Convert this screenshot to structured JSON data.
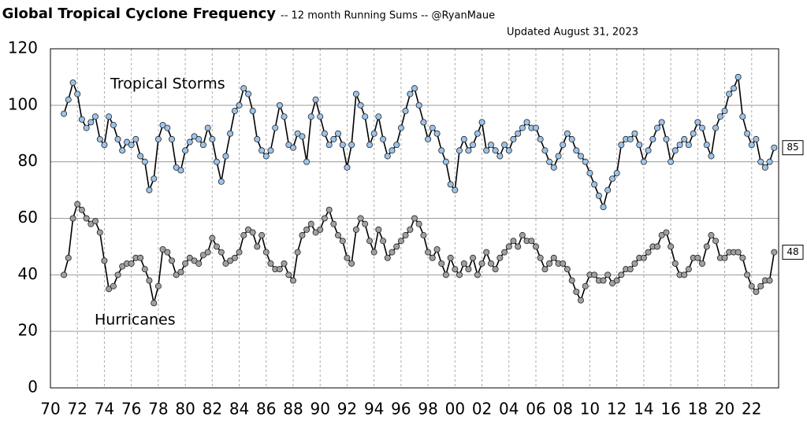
{
  "chart_data": {
    "type": "line",
    "title": "Global Tropical Cyclone Frequency",
    "subtitle": "-- 12 month Running Sums -- @RyanMaue",
    "updated": "Updated August 31, 2023",
    "xlim": [
      1970,
      2024
    ],
    "xticks": [
      {
        "value": 1970,
        "label": "70"
      },
      {
        "value": 1972,
        "label": "72"
      },
      {
        "value": 1974,
        "label": "74"
      },
      {
        "value": 1976,
        "label": "76"
      },
      {
        "value": 1978,
        "label": "78"
      },
      {
        "value": 1980,
        "label": "80"
      },
      {
        "value": 1982,
        "label": "82"
      },
      {
        "value": 1984,
        "label": "84"
      },
      {
        "value": 1986,
        "label": "86"
      },
      {
        "value": 1988,
        "label": "88"
      },
      {
        "value": 1990,
        "label": "90"
      },
      {
        "value": 1992,
        "label": "92"
      },
      {
        "value": 1994,
        "label": "94"
      },
      {
        "value": 1996,
        "label": "96"
      },
      {
        "value": 1998,
        "label": "98"
      },
      {
        "value": 2000,
        "label": "00"
      },
      {
        "value": 2002,
        "label": "02"
      },
      {
        "value": 2004,
        "label": "04"
      },
      {
        "value": 2006,
        "label": "06"
      },
      {
        "value": 2008,
        "label": "08"
      },
      {
        "value": 2010,
        "label": "10"
      },
      {
        "value": 2012,
        "label": "12"
      },
      {
        "value": 2014,
        "label": "14"
      },
      {
        "value": 2016,
        "label": "16"
      },
      {
        "value": 2018,
        "label": "18"
      },
      {
        "value": 2020,
        "label": "20"
      },
      {
        "value": 2022,
        "label": "22"
      }
    ],
    "ylim": [
      0,
      120
    ],
    "yticks": [
      0,
      20,
      40,
      60,
      80,
      100,
      120
    ],
    "grid": true,
    "x": [
      1971,
      1971.33,
      1971.67,
      1972,
      1972.33,
      1972.67,
      1973,
      1973.33,
      1973.67,
      1974,
      1974.33,
      1974.67,
      1975,
      1975.33,
      1975.67,
      1976,
      1976.33,
      1976.67,
      1977,
      1977.33,
      1977.67,
      1978,
      1978.33,
      1978.67,
      1979,
      1979.33,
      1979.67,
      1980,
      1980.33,
      1980.67,
      1981,
      1981.33,
      1981.67,
      1982,
      1982.33,
      1982.67,
      1983,
      1983.33,
      1983.67,
      1984,
      1984.33,
      1984.67,
      1985,
      1985.33,
      1985.67,
      1986,
      1986.33,
      1986.67,
      1987,
      1987.33,
      1987.67,
      1988,
      1988.33,
      1988.67,
      1989,
      1989.33,
      1989.67,
      1990,
      1990.33,
      1990.67,
      1991,
      1991.33,
      1991.67,
      1992,
      1992.33,
      1992.67,
      1993,
      1993.33,
      1993.67,
      1994,
      1994.33,
      1994.67,
      1995,
      1995.33,
      1995.67,
      1996,
      1996.33,
      1996.67,
      1997,
      1997.33,
      1997.67,
      1998,
      1998.33,
      1998.67,
      1999,
      1999.33,
      1999.67,
      2000,
      2000.33,
      2000.67,
      2001,
      2001.33,
      2001.67,
      2002,
      2002.33,
      2002.67,
      2003,
      2003.33,
      2003.67,
      2004,
      2004.33,
      2004.67,
      2005,
      2005.33,
      2005.67,
      2006,
      2006.33,
      2006.67,
      2007,
      2007.33,
      2007.67,
      2008,
      2008.33,
      2008.67,
      2009,
      2009.33,
      2009.67,
      2010,
      2010.33,
      2010.67,
      2011,
      2011.33,
      2011.67,
      2012,
      2012.33,
      2012.67,
      2013,
      2013.33,
      2013.67,
      2014,
      2014.33,
      2014.67,
      2015,
      2015.33,
      2015.67,
      2016,
      2016.33,
      2016.67,
      2017,
      2017.33,
      2017.67,
      2018,
      2018.33,
      2018.67,
      2019,
      2019.33,
      2019.67,
      2020,
      2020.33,
      2020.67,
      2021,
      2021.33,
      2021.67,
      2022,
      2022.33,
      2022.67,
      2023,
      2023.33,
      2023.67
    ],
    "series": [
      {
        "name": "Tropical Storms",
        "color": "#9cc3ea",
        "values": [
          97,
          102,
          108,
          104,
          95,
          92,
          94,
          96,
          88,
          86,
          96,
          93,
          88,
          84,
          87,
          86,
          88,
          82,
          80,
          70,
          74,
          88,
          93,
          92,
          88,
          78,
          77,
          84,
          87,
          89,
          88,
          86,
          92,
          88,
          80,
          73,
          82,
          90,
          98,
          100,
          106,
          104,
          98,
          88,
          84,
          82,
          84,
          92,
          100,
          96,
          86,
          85,
          90,
          89,
          80,
          96,
          102,
          96,
          90,
          86,
          88,
          90,
          86,
          78,
          86,
          104,
          100,
          96,
          86,
          90,
          96,
          88,
          82,
          84,
          86,
          92,
          98,
          104,
          106,
          100,
          94,
          88,
          92,
          90,
          84,
          80,
          72,
          70,
          84,
          88,
          84,
          86,
          90,
          94,
          84,
          86,
          84,
          82,
          86,
          84,
          88,
          90,
          92,
          94,
          92,
          92,
          88,
          84,
          80,
          78,
          82,
          86,
          90,
          88,
          84,
          82,
          80,
          76,
          72,
          68,
          64,
          70,
          74,
          76,
          86,
          88,
          88,
          90,
          86,
          80,
          84,
          88,
          92,
          94,
          88,
          80,
          84,
          86,
          88,
          86,
          90,
          94,
          92,
          86,
          82,
          92,
          96,
          98,
          104,
          106,
          110,
          96,
          90,
          86,
          88,
          80,
          78,
          80,
          85
        ]
      },
      {
        "name": "Hurricanes",
        "color": "#a0a0a0",
        "values": [
          40,
          46,
          60,
          65,
          63,
          60,
          58,
          59,
          55,
          45,
          35,
          36,
          40,
          43,
          44,
          44,
          46,
          46,
          42,
          38,
          30,
          36,
          49,
          48,
          45,
          40,
          41,
          44,
          46,
          45,
          44,
          47,
          48,
          53,
          50,
          48,
          44,
          45,
          46,
          48,
          54,
          56,
          55,
          50,
          54,
          48,
          44,
          42,
          42,
          44,
          40,
          38,
          48,
          54,
          56,
          58,
          55,
          56,
          60,
          63,
          58,
          54,
          52,
          46,
          44,
          56,
          60,
          58,
          52,
          48,
          56,
          52,
          46,
          48,
          50,
          52,
          54,
          56,
          60,
          58,
          54,
          48,
          46,
          49,
          44,
          40,
          46,
          42,
          40,
          44,
          42,
          46,
          40,
          44,
          48,
          44,
          42,
          46,
          48,
          50,
          52,
          50,
          54,
          52,
          52,
          50,
          46,
          42,
          44,
          46,
          44,
          44,
          42,
          38,
          34,
          31,
          36,
          40,
          40,
          38,
          38,
          40,
          37,
          38,
          40,
          42,
          42,
          44,
          46,
          46,
          48,
          50,
          50,
          54,
          55,
          50,
          44,
          40,
          40,
          42,
          46,
          46,
          44,
          50,
          54,
          52,
          46,
          46,
          48,
          48,
          48,
          46,
          40,
          36,
          34,
          36,
          38,
          38,
          48
        ]
      }
    ]
  }
}
